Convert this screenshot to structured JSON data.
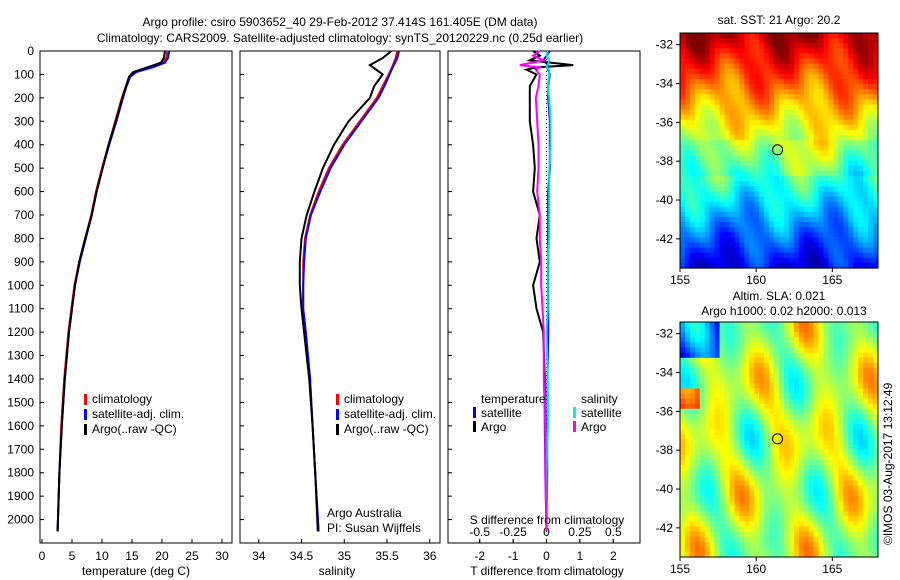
{
  "title": {
    "line1": "Argo profile: csiro 5903652_40 29-Feb-2012 37.414S 161.405E (DM data)",
    "line2": "Climatology: CARS2009. Satellite-adjusted climatology: synTS_20120229.nc (0.25d earlier)"
  },
  "copyright": "©IMOS 03-Aug-2017 13:12:49",
  "colors": {
    "climatology": "#ff0000",
    "satellite": "#0000ff",
    "argo": "#000000",
    "sal_satellite": "#00e0e0",
    "sal_argo": "#ff00ff"
  },
  "chart_data": [
    {
      "type": "line",
      "id": "temperature",
      "xlabel": "temperature (deg C)",
      "ylabel": "",
      "xlim": [
        -0.33,
        31.67
      ],
      "ylim": [
        0,
        2100
      ],
      "xticks": [
        "0",
        "5",
        "10",
        "15",
        "20",
        "25",
        "30"
      ],
      "xtick_values": [
        0,
        5,
        10,
        15,
        20,
        25,
        30
      ],
      "yticks": [
        "0",
        "100",
        "200",
        "300",
        "400",
        "500",
        "600",
        "700",
        "800",
        "900",
        "1000",
        "1100",
        "1200",
        "1300",
        "1400",
        "1500",
        "1600",
        "1700",
        "1800",
        "1900",
        "2000"
      ],
      "legend": [
        "climatology",
        "satellite-adj. clim.",
        "Argo(..raw -QC)"
      ],
      "depth": [
        0,
        30,
        50,
        70,
        90,
        110,
        150,
        200,
        300,
        400,
        500,
        600,
        700,
        800,
        900,
        1000,
        1200,
        1400,
        1600,
        1800,
        2050
      ],
      "series": [
        {
          "name": "climatology",
          "values": [
            20.9,
            20.7,
            20.2,
            18.0,
            15.5,
            14.6,
            14.0,
            13.3,
            12.2,
            11.1,
            10.0,
            9.0,
            8.2,
            7.2,
            6.2,
            5.4,
            4.4,
            3.7,
            3.2,
            2.9,
            2.6
          ]
        },
        {
          "name": "satellite-adj. clim.",
          "values": [
            21.2,
            21.0,
            20.5,
            18.4,
            15.7,
            14.7,
            14.1,
            13.5,
            12.4,
            11.2,
            10.1,
            9.1,
            8.3,
            7.3,
            6.3,
            5.5,
            4.5,
            3.8,
            3.3,
            2.9,
            2.6
          ]
        },
        {
          "name": "Argo(..raw -QC)",
          "values": [
            20.5,
            20.3,
            19.8,
            17.5,
            15.2,
            14.5,
            14.0,
            13.4,
            12.3,
            11.1,
            10.1,
            9.1,
            8.3,
            7.2,
            6.2,
            5.5,
            4.5,
            3.8,
            3.3,
            2.9,
            2.6
          ]
        }
      ]
    },
    {
      "type": "line",
      "id": "salinity",
      "xlabel": "salinity",
      "xlim": [
        33.78,
        36.12
      ],
      "ylim": [
        0,
        2100
      ],
      "xticks": [
        "34",
        "34.5",
        "35",
        "35.5",
        "36"
      ],
      "xtick_values": [
        34,
        34.5,
        35,
        35.5,
        36
      ],
      "legend": [
        "climatology",
        "satellite-adj. clim.",
        "Argo(..raw -QC)"
      ],
      "annotation": [
        "Argo Australia",
        "PI: Susan Wijffels"
      ],
      "depth": [
        0,
        30,
        60,
        100,
        150,
        200,
        300,
        400,
        500,
        600,
        700,
        800,
        900,
        1000,
        1100,
        1200,
        1400,
        1600,
        1800,
        2050
      ],
      "series": [
        {
          "name": "climatology",
          "values": [
            35.62,
            35.6,
            35.57,
            35.52,
            35.45,
            35.38,
            35.18,
            34.98,
            34.82,
            34.7,
            34.6,
            34.54,
            34.52,
            34.52,
            34.52,
            34.55,
            34.6,
            34.63,
            34.66,
            34.7
          ]
        },
        {
          "name": "satellite-adj. clim.",
          "values": [
            35.64,
            35.62,
            35.58,
            35.53,
            35.47,
            35.4,
            35.2,
            35.0,
            34.84,
            34.72,
            34.61,
            34.55,
            34.53,
            34.52,
            34.52,
            34.55,
            34.6,
            34.63,
            34.66,
            34.7
          ]
        },
        {
          "name": "Argo(..raw -QC)",
          "values": [
            35.55,
            35.45,
            35.3,
            35.45,
            35.35,
            35.3,
            35.05,
            34.88,
            34.75,
            34.65,
            34.56,
            34.5,
            34.48,
            34.48,
            34.5,
            34.53,
            34.59,
            34.63,
            34.66,
            34.69
          ]
        }
      ]
    },
    {
      "type": "line",
      "id": "difference",
      "xlabel": "T difference from climatology",
      "xlabel2": "S difference from climatology",
      "xlim": [
        -2.95,
        2.8
      ],
      "ylim": [
        0,
        2100
      ],
      "xticks": [
        "-2",
        "-1",
        "0",
        "1",
        "2"
      ],
      "xtick_values": [
        -2,
        -1,
        0,
        1,
        2
      ],
      "s_ticks": [
        "-0.5",
        "-0.25",
        "0",
        "0.25",
        "0.5"
      ],
      "s_tick_values": [
        -0.5,
        -0.25,
        0,
        0.25,
        0.5
      ],
      "legend": {
        "temperature": "temperature",
        "salinity": "salinity",
        "satellite": "satellite",
        "argo": "Argo"
      },
      "depth": [
        0,
        20,
        40,
        60,
        70,
        80,
        100,
        150,
        200,
        300,
        400,
        500,
        600,
        700,
        800,
        900,
        1000,
        1100,
        1200,
        1400,
        1600,
        1800,
        2050
      ],
      "series": [
        {
          "name": "T satellite",
          "values": [
            0.1,
            0.0,
            -0.1,
            0.05,
            0.0,
            0.05,
            0.1,
            0.05,
            0.05,
            0.1,
            0.1,
            0.1,
            0.05,
            0.05,
            0.05,
            0.05,
            0.05,
            0.05,
            0.05,
            0.03,
            0.02,
            0.02,
            0.0
          ]
        },
        {
          "name": "T Argo",
          "values": [
            -0.4,
            -0.2,
            -0.5,
            0.8,
            -0.3,
            -0.6,
            -0.3,
            -0.5,
            -0.5,
            -0.5,
            -0.4,
            -0.35,
            -0.4,
            -0.2,
            -0.3,
            -0.2,
            -0.4,
            -0.3,
            -0.1,
            -0.05,
            -0.05,
            -0.03,
            0.0
          ]
        },
        {
          "name": "S satellite",
          "values": [
            0.01,
            0.0,
            0.02,
            0.01,
            0.0,
            0.02,
            0.02,
            0.01,
            0.02,
            0.03,
            0.03,
            0.02,
            0.02,
            0.02,
            0.02,
            0.01,
            0.01,
            0.01,
            0.0,
            0.01,
            0.01,
            0.0,
            0.0
          ]
        },
        {
          "name": "S Argo",
          "values": [
            -0.05,
            -0.1,
            -0.02,
            -0.2,
            -0.05,
            -0.08,
            -0.05,
            -0.06,
            -0.08,
            -0.07,
            -0.06,
            -0.06,
            -0.07,
            -0.05,
            -0.05,
            -0.04,
            -0.04,
            -0.03,
            -0.02,
            -0.02,
            -0.01,
            -0.01,
            0.0
          ]
        }
      ]
    },
    {
      "type": "heatmap",
      "id": "sst-map",
      "title": "sat. SST: 21 Argo: 20.2",
      "xticks": [
        "155",
        "160",
        "165"
      ],
      "xtick_values": [
        155,
        160,
        165
      ],
      "yticks": [
        "-32",
        "-34",
        "-36",
        "-38",
        "-40",
        "-42"
      ],
      "ytick_values": [
        -32,
        -34,
        -36,
        -38,
        -40,
        -42
      ],
      "xlim": [
        155,
        168
      ],
      "ylim": [
        -43.5,
        -31.4
      ],
      "marker": {
        "lon": 161.405,
        "lat": -37.414
      }
    },
    {
      "type": "heatmap",
      "id": "sla-map",
      "title": "Altim. SLA: 0.021",
      "subtitle": "Argo h1000: 0.02 h2000: 0.013",
      "xticks": [
        "155",
        "160",
        "165"
      ],
      "xtick_values": [
        155,
        160,
        165
      ],
      "yticks": [
        "-32",
        "-34",
        "-36",
        "-38",
        "-40",
        "-42"
      ],
      "ytick_values": [
        -32,
        -34,
        -36,
        -38,
        -40,
        -42
      ],
      "xlim": [
        155,
        168
      ],
      "ylim": [
        -43.5,
        -31.4
      ],
      "marker": {
        "lon": 161.405,
        "lat": -37.414
      }
    }
  ]
}
